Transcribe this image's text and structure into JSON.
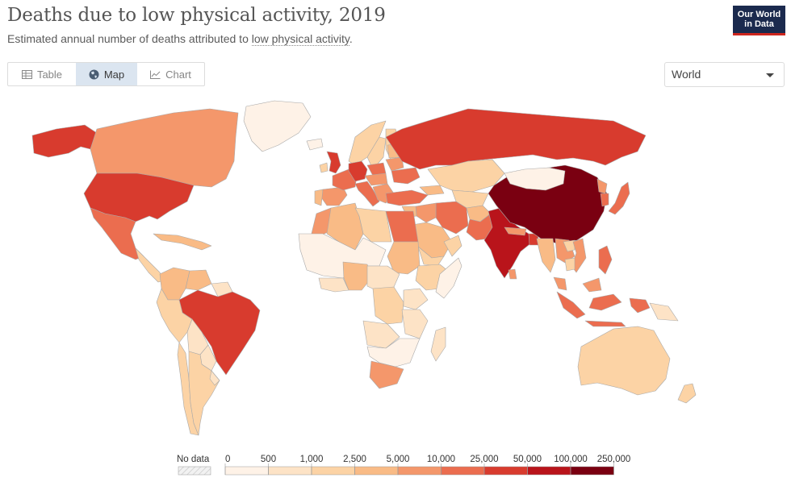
{
  "header": {
    "title": "Deaths due to low physical activity, 2019",
    "subtitle_prefix": "Estimated annual number of deaths attributed to ",
    "subtitle_link": "low physical activity",
    "subtitle_suffix": "."
  },
  "logo": {
    "line1": "Our World",
    "line2": "in Data"
  },
  "tabs": [
    {
      "label": "Table",
      "icon": "table-icon",
      "active": false
    },
    {
      "label": "Map",
      "icon": "globe-icon",
      "active": true
    },
    {
      "label": "Chart",
      "icon": "line-chart-icon",
      "active": false
    }
  ],
  "region_select": {
    "value": "World"
  },
  "legend": {
    "no_data_label": "No data",
    "ticks": [
      "0",
      "500",
      "1,000",
      "2,500",
      "5,000",
      "10,000",
      "25,000",
      "50,000",
      "100,000",
      "250,000"
    ],
    "colors": [
      "#fef2e7",
      "#fde3c6",
      "#fcd3a5",
      "#f9bb86",
      "#f4976b",
      "#eb6d4f",
      "#d83b2e",
      "#b9141b",
      "#7a0011"
    ]
  },
  "colors": {
    "no_data": "#e9e9e9",
    "border": "#a9a9a9",
    "water": "#ffffff"
  },
  "map_regions": [
    {
      "name": "Alaska / United States",
      "color": "#d83b2e"
    },
    {
      "name": "Canada",
      "color": "#f4976b"
    },
    {
      "name": "Greenland",
      "color": "#fef2e7"
    },
    {
      "name": "United States",
      "color": "#d83b2e"
    },
    {
      "name": "Mexico",
      "color": "#eb6d4f"
    },
    {
      "name": "Central America",
      "color": "#fcd3a5"
    },
    {
      "name": "Caribbean",
      "color": "#f9bb86"
    },
    {
      "name": "Colombia",
      "color": "#f9bb86"
    },
    {
      "name": "Venezuela",
      "color": "#f9bb86"
    },
    {
      "name": "Guianas",
      "color": "#fde3c6"
    },
    {
      "name": "Brazil",
      "color": "#d83b2e"
    },
    {
      "name": "Peru",
      "color": "#fcd3a5"
    },
    {
      "name": "Bolivia",
      "color": "#fde3c6"
    },
    {
      "name": "Paraguay",
      "color": "#fde3c6"
    },
    {
      "name": "Chile",
      "color": "#fcd3a5"
    },
    {
      "name": "Argentina",
      "color": "#fcd3a5"
    },
    {
      "name": "Uruguay",
      "color": "#fde3c6"
    },
    {
      "name": "Iceland",
      "color": "#fef2e7"
    },
    {
      "name": "Norway",
      "color": "#fcd3a5"
    },
    {
      "name": "Sweden",
      "color": "#fcd3a5"
    },
    {
      "name": "Finland",
      "color": "#fcd3a5"
    },
    {
      "name": "United Kingdom",
      "color": "#d83b2e"
    },
    {
      "name": "Ireland",
      "color": "#fcd3a5"
    },
    {
      "name": "Spain",
      "color": "#f4976b"
    },
    {
      "name": "Portugal",
      "color": "#f9bb86"
    },
    {
      "name": "France",
      "color": "#eb6d4f"
    },
    {
      "name": "Germany",
      "color": "#d83b2e"
    },
    {
      "name": "Italy",
      "color": "#eb6d4f"
    },
    {
      "name": "Poland",
      "color": "#eb6d4f"
    },
    {
      "name": "Central Europe",
      "color": "#f4976b"
    },
    {
      "name": "Balkans",
      "color": "#f4976b"
    },
    {
      "name": "Ukraine",
      "color": "#eb6d4f"
    },
    {
      "name": "Belarus",
      "color": "#f4976b"
    },
    {
      "name": "Baltics",
      "color": "#f9bb86"
    },
    {
      "name": "Russia",
      "color": "#d83b2e"
    },
    {
      "name": "Kazakhstan",
      "color": "#fcd3a5"
    },
    {
      "name": "Central Asia",
      "color": "#fcd3a5"
    },
    {
      "name": "Caucasus",
      "color": "#f9bb86"
    },
    {
      "name": "Turkey",
      "color": "#eb6d4f"
    },
    {
      "name": "Iran",
      "color": "#eb6d4f"
    },
    {
      "name": "Iraq",
      "color": "#f4976b"
    },
    {
      "name": "Syria",
      "color": "#f9bb86"
    },
    {
      "name": "Saudi Arabia",
      "color": "#f9bb86"
    },
    {
      "name": "Yemen",
      "color": "#fcd3a5"
    },
    {
      "name": "Oman",
      "color": "#fcd3a5"
    },
    {
      "name": "Afghanistan",
      "color": "#f9bb86"
    },
    {
      "name": "Pakistan",
      "color": "#eb6d4f"
    },
    {
      "name": "India",
      "color": "#b9141b"
    },
    {
      "name": "Nepal",
      "color": "#f4976b"
    },
    {
      "name": "Bangladesh",
      "color": "#d83b2e"
    },
    {
      "name": "Sri Lanka",
      "color": "#f4976b"
    },
    {
      "name": "China",
      "color": "#7a0011"
    },
    {
      "name": "Mongolia",
      "color": "#fef2e7"
    },
    {
      "name": "North Korea",
      "color": "#f4976b"
    },
    {
      "name": "South Korea",
      "color": "#eb6d4f"
    },
    {
      "name": "Japan",
      "color": "#eb6d4f"
    },
    {
      "name": "Myanmar",
      "color": "#f9bb86"
    },
    {
      "name": "Thailand",
      "color": "#f4976b"
    },
    {
      "name": "Laos",
      "color": "#fcd3a5"
    },
    {
      "name": "Vietnam",
      "color": "#f4976b"
    },
    {
      "name": "Cambodia",
      "color": "#fcd3a5"
    },
    {
      "name": "Malaysia",
      "color": "#f4976b"
    },
    {
      "name": "Philippines",
      "color": "#eb6d4f"
    },
    {
      "name": "Indonesia",
      "color": "#eb6d4f"
    },
    {
      "name": "Papua New Guinea",
      "color": "#fde3c6"
    },
    {
      "name": "Australia",
      "color": "#fcd3a5"
    },
    {
      "name": "New Zealand",
      "color": "#fcd3a5"
    },
    {
      "name": "Morocco",
      "color": "#f4976b"
    },
    {
      "name": "Algeria",
      "color": "#f9bb86"
    },
    {
      "name": "Libya",
      "color": "#fcd3a5"
    },
    {
      "name": "Egypt",
      "color": "#eb6d4f"
    },
    {
      "name": "Sudan",
      "color": "#f9bb86"
    },
    {
      "name": "West Africa Sahel",
      "color": "#fef2e7"
    },
    {
      "name": "Nigeria",
      "color": "#f9bb86"
    },
    {
      "name": "West Coast Africa",
      "color": "#fde3c6"
    },
    {
      "name": "Ethiopia",
      "color": "#fcd3a5"
    },
    {
      "name": "Somalia",
      "color": "#fef2e7"
    },
    {
      "name": "Central Africa",
      "color": "#fde3c6"
    },
    {
      "name": "DR Congo",
      "color": "#fcd3a5"
    },
    {
      "name": "Kenya",
      "color": "#fde3c6"
    },
    {
      "name": "Tanzania",
      "color": "#fde3c6"
    },
    {
      "name": "Angola",
      "color": "#fde3c6"
    },
    {
      "name": "Southern Africa",
      "color": "#fef2e7"
    },
    {
      "name": "South Africa",
      "color": "#f4976b"
    },
    {
      "name": "Madagascar",
      "color": "#fde3c6"
    }
  ]
}
